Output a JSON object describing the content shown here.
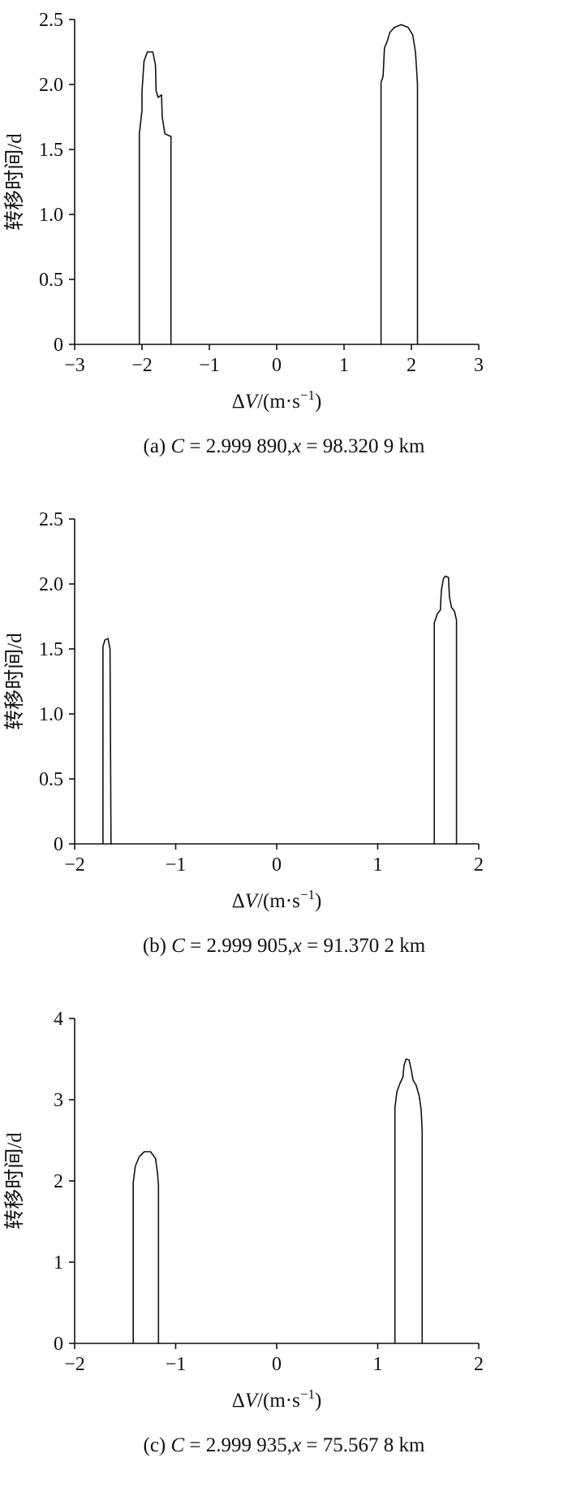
{
  "figure": {
    "description": "Three stacked transfer-time vs delta-V plots",
    "panel_labels": [
      "(a)",
      "(b)",
      "(c)"
    ]
  },
  "colors": {
    "line": "#111111",
    "text": "#111111",
    "background": "#ffffff"
  },
  "chart_data": [
    {
      "id": "a",
      "type": "line",
      "title": "",
      "xlabel": "ΔV/(m·s−1)",
      "xlabel_parts": [
        {
          "t": "Δ"
        },
        {
          "t": "V",
          "i": true
        },
        {
          "t": "/(m·s"
        },
        {
          "t": "−1",
          "sup": true
        },
        {
          "t": ")"
        }
      ],
      "ylabel": "转移时间/d",
      "xlim": [
        -3,
        3
      ],
      "xticks": [
        -3,
        -2,
        -1,
        0,
        1,
        2,
        3
      ],
      "xtick_labels": [
        "−3",
        "−2",
        "−1",
        "0",
        "1",
        "2",
        "3"
      ],
      "ylim": [
        0,
        2.5
      ],
      "yticks": [
        0,
        0.5,
        1,
        1.5,
        2,
        2.5
      ],
      "ytick_labels": [
        "0",
        "0.5",
        "1.0",
        "1.5",
        "2.0",
        "2.5"
      ],
      "grid": false,
      "legend": false,
      "caption": "(a) C = 2.999 890,x = 98.320 9 km",
      "caption_parts": [
        {
          "t": "(a) "
        },
        {
          "t": "C",
          "i": true
        },
        {
          "t": " = 2.999 890,"
        },
        {
          "t": "x",
          "i": true
        },
        {
          "t": " = 98.320 9 km"
        }
      ],
      "series": [
        {
          "name": "left-peak-outline",
          "points": [
            [
              -2.04,
              0
            ],
            [
              -2.04,
              1.62
            ],
            [
              -2.0,
              1.8
            ],
            [
              -2.0,
              1.95
            ],
            [
              -1.97,
              2.18
            ],
            [
              -1.92,
              2.25
            ],
            [
              -1.84,
              2.25
            ],
            [
              -1.8,
              2.15
            ],
            [
              -1.79,
              1.95
            ],
            [
              -1.76,
              1.9
            ],
            [
              -1.71,
              1.92
            ],
            [
              -1.7,
              1.75
            ],
            [
              -1.66,
              1.62
            ],
            [
              -1.57,
              1.6
            ],
            [
              -1.57,
              0
            ]
          ]
        },
        {
          "name": "right-peak-outline",
          "points": [
            [
              1.55,
              0
            ],
            [
              1.55,
              2.02
            ],
            [
              1.58,
              2.06
            ],
            [
              1.6,
              2.28
            ],
            [
              1.64,
              2.33
            ],
            [
              1.68,
              2.4
            ],
            [
              1.75,
              2.44
            ],
            [
              1.85,
              2.46
            ],
            [
              1.95,
              2.44
            ],
            [
              2.02,
              2.38
            ],
            [
              2.06,
              2.25
            ],
            [
              2.08,
              2.1
            ],
            [
              2.09,
              2.0
            ],
            [
              2.09,
              0
            ]
          ]
        }
      ]
    },
    {
      "id": "b",
      "type": "line",
      "title": "",
      "xlabel": "ΔV/(m·s−1)",
      "xlabel_parts": [
        {
          "t": "Δ"
        },
        {
          "t": "V",
          "i": true
        },
        {
          "t": "/(m·s"
        },
        {
          "t": "−1",
          "sup": true
        },
        {
          "t": ")"
        }
      ],
      "ylabel": "转移时间/d",
      "xlim": [
        -2,
        2
      ],
      "xticks": [
        -2,
        -1,
        0,
        1,
        2
      ],
      "xtick_labels": [
        "−2",
        "−1",
        "0",
        "1",
        "2"
      ],
      "ylim": [
        0,
        2.5
      ],
      "yticks": [
        0,
        0.5,
        1,
        1.5,
        2,
        2.5
      ],
      "ytick_labels": [
        "0",
        "0.5",
        "1.0",
        "1.5",
        "2.0",
        "2.5"
      ],
      "grid": false,
      "legend": false,
      "caption": "(b) C = 2.999 905,x = 91.370 2 km",
      "caption_parts": [
        {
          "t": "(b) "
        },
        {
          "t": "C",
          "i": true
        },
        {
          "t": " = 2.999 905,"
        },
        {
          "t": "x",
          "i": true
        },
        {
          "t": " = 91.370 2 km"
        }
      ],
      "series": [
        {
          "name": "left-peak-outline",
          "points": [
            [
              -1.72,
              0
            ],
            [
              -1.72,
              1.52
            ],
            [
              -1.7,
              1.57
            ],
            [
              -1.67,
              1.58
            ],
            [
              -1.65,
              1.5
            ],
            [
              -1.64,
              0
            ]
          ]
        },
        {
          "name": "right-peak-outline",
          "points": [
            [
              1.56,
              0
            ],
            [
              1.56,
              1.7
            ],
            [
              1.59,
              1.77
            ],
            [
              1.62,
              1.8
            ],
            [
              1.63,
              1.95
            ],
            [
              1.65,
              2.04
            ],
            [
              1.67,
              2.06
            ],
            [
              1.7,
              2.05
            ],
            [
              1.71,
              1.9
            ],
            [
              1.73,
              1.82
            ],
            [
              1.76,
              1.79
            ],
            [
              1.78,
              1.72
            ],
            [
              1.78,
              0
            ]
          ]
        }
      ]
    },
    {
      "id": "c",
      "type": "line",
      "title": "",
      "xlabel": "ΔV/(m·s−1)",
      "xlabel_parts": [
        {
          "t": "Δ"
        },
        {
          "t": "V",
          "i": true
        },
        {
          "t": "/(m·s"
        },
        {
          "t": "−1",
          "sup": true
        },
        {
          "t": ")"
        }
      ],
      "ylabel": "转移时间/d",
      "xlim": [
        -2,
        2
      ],
      "xticks": [
        -2,
        -1,
        0,
        1,
        2
      ],
      "xtick_labels": [
        "−2",
        "−1",
        "0",
        "1",
        "2"
      ],
      "ylim": [
        0,
        4
      ],
      "yticks": [
        0,
        1,
        2,
        3,
        4
      ],
      "ytick_labels": [
        "0",
        "1",
        "2",
        "3",
        "4"
      ],
      "grid": false,
      "legend": false,
      "caption": "(c) C = 2.999 935,x = 75.567 8 km",
      "caption_parts": [
        {
          "t": "(c) "
        },
        {
          "t": "C",
          "i": true
        },
        {
          "t": " = 2.999 935,"
        },
        {
          "t": "x",
          "i": true
        },
        {
          "t": " = 75.567 8 km"
        }
      ],
      "series": [
        {
          "name": "left-peak-outline",
          "points": [
            [
              -1.42,
              0
            ],
            [
              -1.42,
              1.98
            ],
            [
              -1.4,
              2.18
            ],
            [
              -1.36,
              2.3
            ],
            [
              -1.31,
              2.36
            ],
            [
              -1.25,
              2.36
            ],
            [
              -1.2,
              2.28
            ],
            [
              -1.18,
              2.1
            ],
            [
              -1.17,
              1.95
            ],
            [
              -1.17,
              0
            ]
          ]
        },
        {
          "name": "right-peak-outline",
          "points": [
            [
              1.17,
              0
            ],
            [
              1.17,
              2.9
            ],
            [
              1.19,
              3.1
            ],
            [
              1.22,
              3.2
            ],
            [
              1.25,
              3.28
            ],
            [
              1.26,
              3.42
            ],
            [
              1.28,
              3.5
            ],
            [
              1.31,
              3.49
            ],
            [
              1.33,
              3.38
            ],
            [
              1.35,
              3.24
            ],
            [
              1.38,
              3.18
            ],
            [
              1.41,
              3.05
            ],
            [
              1.43,
              2.88
            ],
            [
              1.44,
              2.6
            ],
            [
              1.44,
              0
            ]
          ]
        }
      ]
    }
  ]
}
